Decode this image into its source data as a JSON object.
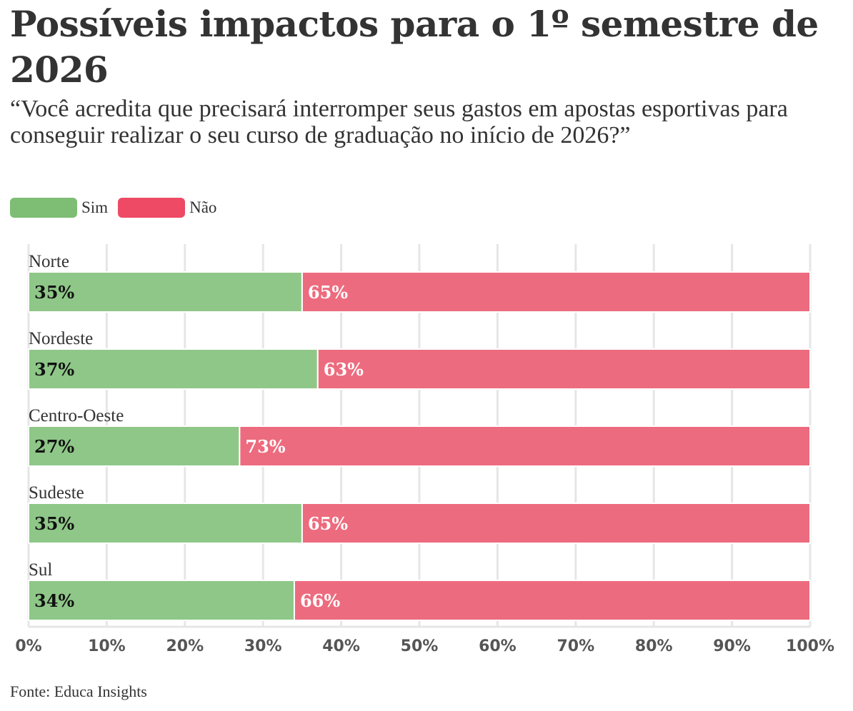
{
  "chart_data": {
    "type": "bar",
    "orientation": "horizontal",
    "stacked": true,
    "title": "Possíveis impactos para o 1º semestre de 2026",
    "subtitle": "“Você acredita que precisará interromper seus gastos em apostas esportivas para conseguir realizar o seu curso de graduação no início de 2026?”",
    "categories": [
      "Norte",
      "Nordeste",
      "Centro-Oeste",
      "Sudeste",
      "Sul"
    ],
    "series": [
      {
        "name": "Sim",
        "color": "#8fc788",
        "values": [
          35,
          37,
          27,
          35,
          34
        ]
      },
      {
        "name": "Não",
        "color": "#ed6b7e",
        "values": [
          65,
          63,
          73,
          65,
          66
        ]
      }
    ],
    "value_suffix": "%",
    "xlim": [
      0,
      100
    ],
    "xticks": [
      0,
      10,
      20,
      30,
      40,
      50,
      60,
      70,
      80,
      90,
      100
    ],
    "grid": true,
    "legend_position": "top-left",
    "source": "Fonte: Educa Insights"
  },
  "legend_colors": {
    "sim": "#7dbd74",
    "nao": "#ee4a65"
  }
}
